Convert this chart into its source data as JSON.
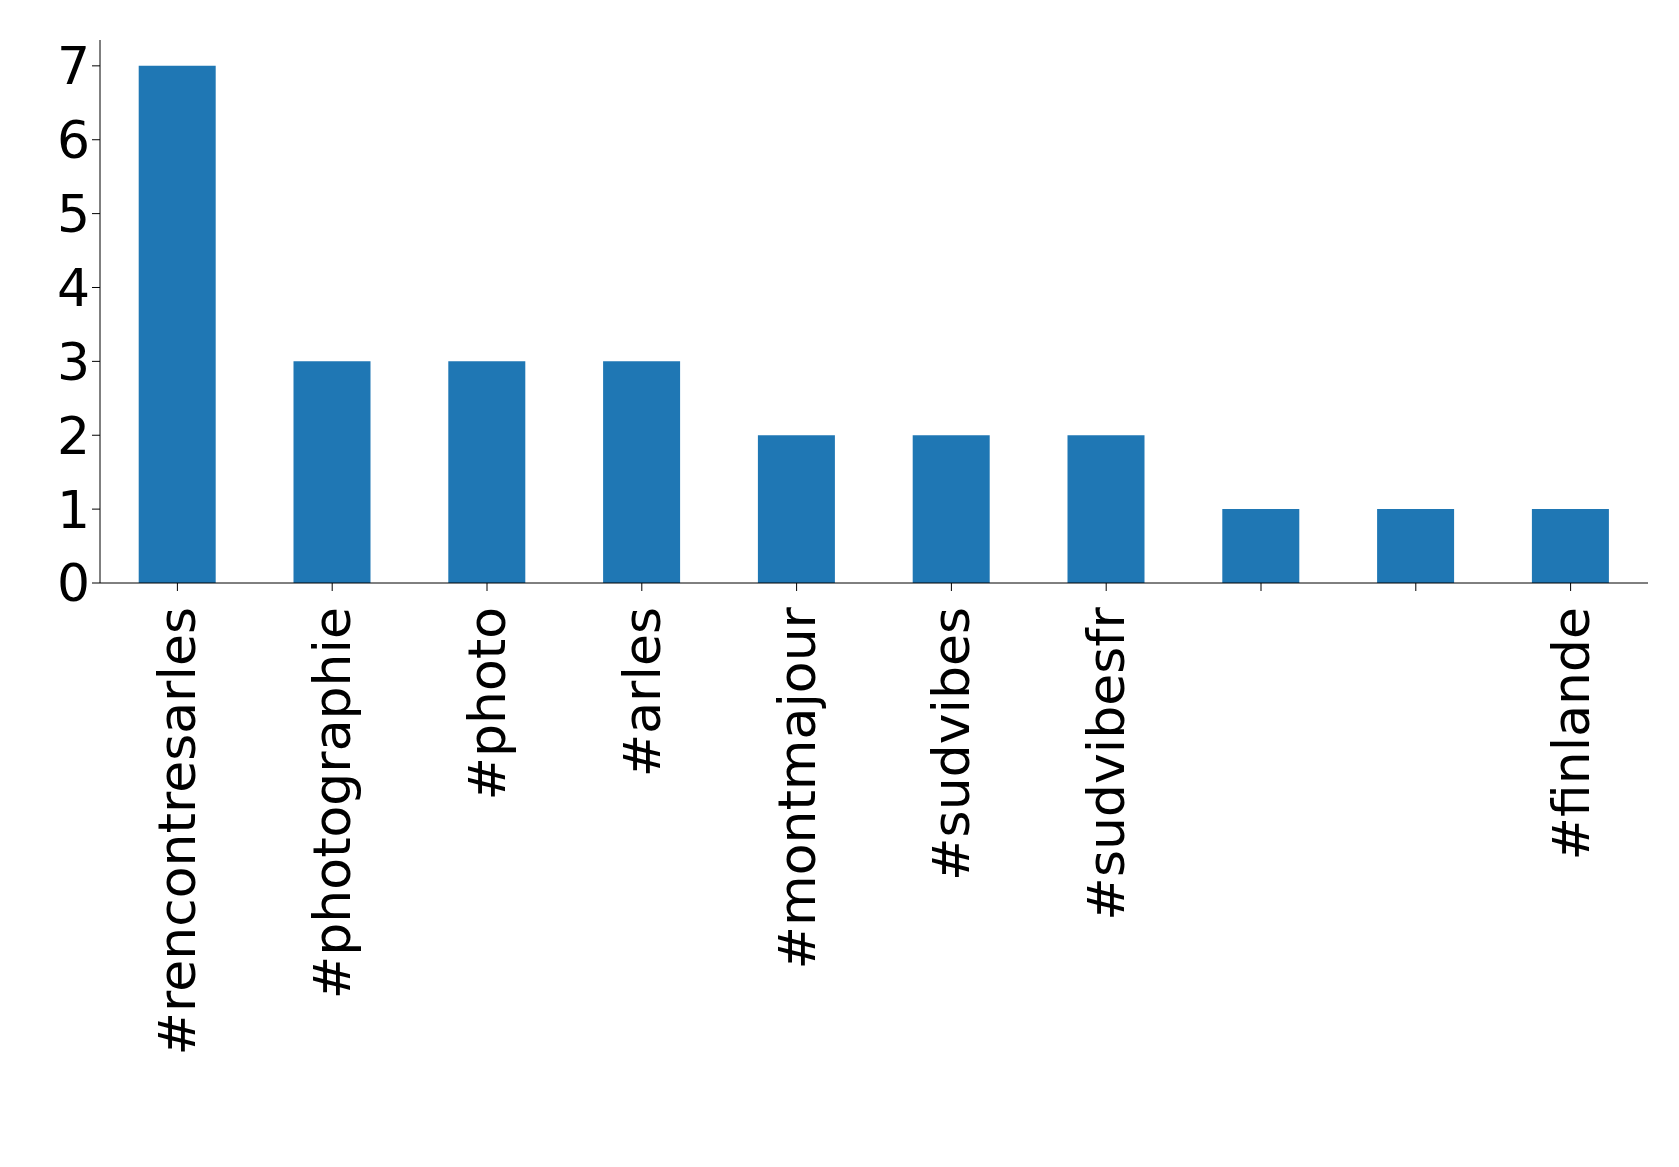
{
  "chart_data": {
    "type": "bar",
    "categories": [
      "#rencontresarles",
      "#photographie",
      "#photo",
      "#arles",
      "#montmajour",
      "#sudvibes",
      "#sudvibesfr",
      null,
      null,
      "#finlande"
    ],
    "values": [
      7,
      3,
      3,
      3,
      2,
      2,
      2,
      1,
      1,
      1
    ],
    "color": "#1f77b4",
    "ylim": [
      0,
      7.35
    ],
    "yticks": [
      0,
      1,
      2,
      3,
      4,
      5,
      6,
      7
    ],
    "grid": false
  }
}
